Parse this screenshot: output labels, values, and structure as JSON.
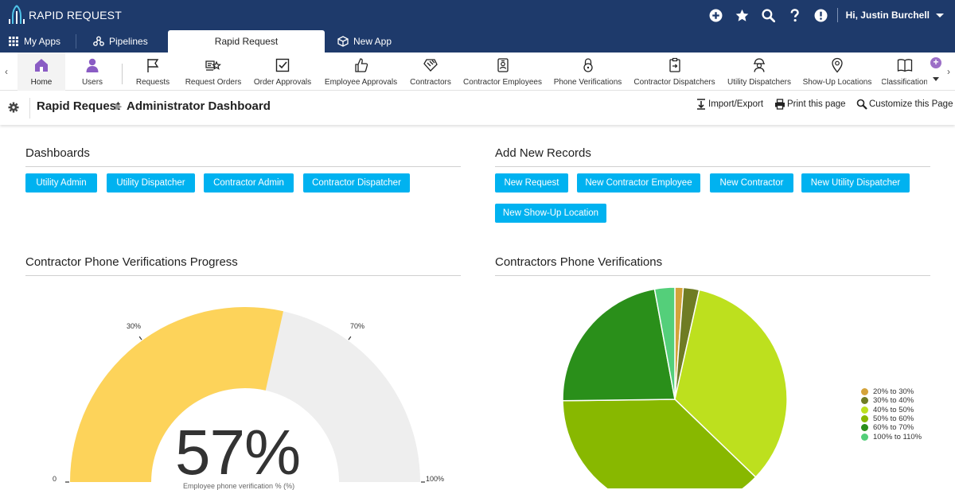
{
  "app": {
    "logo_text": "RAPID REQUEST"
  },
  "user": {
    "greeting": "Hi, Justin Burchell"
  },
  "top_icons": [
    "plus-circle-icon",
    "star-icon",
    "search-icon",
    "help-icon",
    "alert-icon"
  ],
  "app_tabs": [
    {
      "label": "My Apps",
      "icon": "grid-icon"
    },
    {
      "label": "Pipelines",
      "icon": "pipeline-icon"
    },
    {
      "label": "Rapid Request",
      "icon": "",
      "active": true
    },
    {
      "label": "New App",
      "icon": "box-icon"
    }
  ],
  "nav": {
    "items": [
      {
        "label": "Home",
        "icon": "home-icon",
        "active": true
      },
      {
        "label": "Users",
        "icon": "user-icon"
      },
      {
        "label": "Requests",
        "icon": "flag-icon"
      },
      {
        "label": "Request Orders",
        "icon": "truck-star-icon"
      },
      {
        "label": "Order Approvals",
        "icon": "checkbox-icon"
      },
      {
        "label": "Employee Approvals",
        "icon": "thumbs-up-icon"
      },
      {
        "label": "Contractors",
        "icon": "handshake-icon"
      },
      {
        "label": "Contractor Employees",
        "icon": "badge-icon"
      },
      {
        "label": "Phone Verifications",
        "icon": "lock-icon"
      },
      {
        "label": "Contractor Dispatchers",
        "icon": "clipboard-icon"
      },
      {
        "label": "Utility Dispatchers",
        "icon": "worker-icon"
      },
      {
        "label": "Show-Up Locations",
        "icon": "map-pin-icon"
      },
      {
        "label": "Classification",
        "icon": "book-icon"
      }
    ]
  },
  "breadcrumb": {
    "root": "Rapid Request",
    "current": "Administrator Dashboard"
  },
  "actions": {
    "import_export": "Import/Export",
    "print": "Print this page",
    "customize": "Customize this Page"
  },
  "dashboards": {
    "title": "Dashboards",
    "buttons": [
      "Utility Admin",
      "Utility Dispatcher",
      "Contractor Admin",
      "Contractor Dispatcher"
    ]
  },
  "add_records": {
    "title": "Add New Records",
    "buttons": [
      "New Request",
      "New Contractor Employee",
      "New Contractor",
      "New Utility Dispatcher",
      "New Show-Up Location"
    ]
  },
  "gauge": {
    "title": "Contractor Phone Verifications Progress",
    "value_text": "57%",
    "value": 57,
    "ticks": [
      "0",
      "30%",
      "70%",
      "100%"
    ],
    "subtitle": "Employee phone verification % (%)",
    "colors": {
      "filled": "#fdd35a",
      "empty": "#eeeeee"
    }
  },
  "chart_data": {
    "type": "pie",
    "title": "Contractors Phone Verifications",
    "series": [
      {
        "name": "20% to 30%",
        "value": 1.2,
        "color": "#d4a33a"
      },
      {
        "name": "30% to 40%",
        "value": 2.3,
        "color": "#6f7c24"
      },
      {
        "name": "40% to 50%",
        "value": 33.7,
        "color": "#bde01e"
      },
      {
        "name": "50% to 60%",
        "value": 37.6,
        "color": "#88b800"
      },
      {
        "name": "60% to 70%",
        "value": 22.3,
        "color": "#2a8f1a"
      },
      {
        "name": "100% to 110%",
        "value": 2.9,
        "color": "#54cf7a"
      }
    ],
    "legend": "right"
  }
}
